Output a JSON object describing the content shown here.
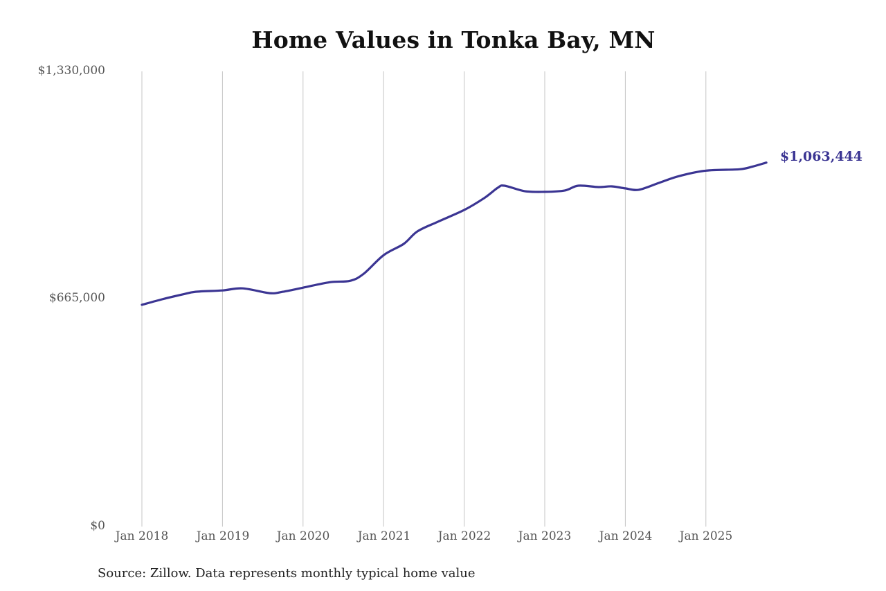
{
  "title": "Home Values in Tonka Bay, MN",
  "source": "Source: Zillow. Data represents monthly typical home value",
  "end_label": "$1,063,444",
  "colors": {
    "line": "#3b3593",
    "grid": "#c4c4c4",
    "text": "#555555"
  },
  "axes": {
    "y_ticks": [
      "$1,330,000",
      "$665,000",
      "$0"
    ],
    "x_ticks": [
      "Jan 2018",
      "Jan 2019",
      "Jan 2020",
      "Jan 2021",
      "Jan 2022",
      "Jan 2023",
      "Jan 2024",
      "Jan 2025"
    ]
  },
  "chart_data": {
    "type": "line",
    "title": "Home Values in Tonka Bay, MN",
    "xlabel": "",
    "ylabel": "",
    "ylim": [
      0,
      1330000
    ],
    "grid": {
      "vertical": true,
      "horizontal": false
    },
    "legend": "none",
    "annotations": [
      {
        "text": "$1,063,444",
        "at": "Oct 2025",
        "position": "right of last point"
      }
    ],
    "x_tick_labels": [
      "Jan 2018",
      "Jan 2019",
      "Jan 2020",
      "Jan 2021",
      "Jan 2022",
      "Jan 2023",
      "Jan 2024",
      "Jan 2025"
    ],
    "y_tick_labels": [
      "$0",
      "$665,000",
      "$1,330,000"
    ],
    "series": [
      {
        "name": "Typical home value",
        "x": [
          "Jan 2018",
          "Apr 2018",
          "Jul 2018",
          "Sep 2018",
          "Jan 2019",
          "Apr 2019",
          "Aug 2019",
          "Oct 2019",
          "Jan 2020",
          "May 2020",
          "Aug 2020",
          "Oct 2020",
          "Jan 2021",
          "Apr 2021",
          "Jun 2021",
          "Sep 2021",
          "Jan 2022",
          "Apr 2022",
          "Jun 2022",
          "Jul 2022",
          "Oct 2022",
          "Jan 2023",
          "Apr 2023",
          "Jun 2023",
          "Sep 2023",
          "Nov 2023",
          "Jan 2024",
          "Mar 2024",
          "Jun 2024",
          "Sep 2024",
          "Jan 2025",
          "Jun 2025",
          "Aug 2025",
          "Oct 2025"
        ],
        "values": [
          648000,
          664000,
          678000,
          686000,
          690000,
          696000,
          682000,
          686000,
          698000,
          714000,
          718000,
          738000,
          793000,
          826000,
          862000,
          890000,
          925000,
          960000,
          990000,
          996000,
          980000,
          978000,
          982000,
          996000,
          992000,
          994000,
          988000,
          984000,
          1004000,
          1024000,
          1040000,
          1044000,
          1052000,
          1063444
        ]
      }
    ]
  }
}
